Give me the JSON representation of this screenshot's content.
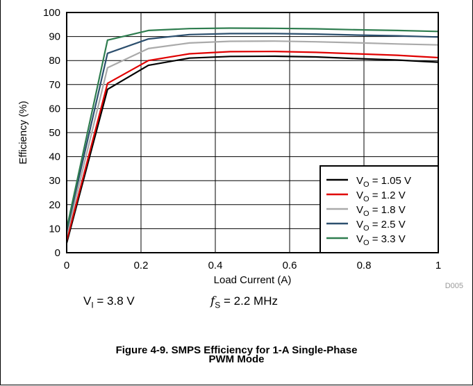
{
  "chart_data": {
    "type": "line",
    "xlabel": "Load Current (A)",
    "ylabel": "Efficiency (%)",
    "xlim": [
      0,
      1
    ],
    "ylim": [
      0,
      100
    ],
    "xticks": [
      0,
      0.2,
      0.4,
      0.6,
      0.8,
      1
    ],
    "xtick_labels": [
      "0",
      "0.2",
      "0.4",
      "0.6",
      "0.8",
      "1"
    ],
    "yticks": [
      0,
      10,
      20,
      30,
      40,
      50,
      60,
      70,
      80,
      90,
      100
    ],
    "grid": true,
    "legend_position": "bottom-right",
    "series": [
      {
        "name": "V_O = 1.05 V",
        "label_main": "V",
        "label_sub": "O",
        "label_rest": " = 1.05 V",
        "color": "#000000",
        "x": [
          0,
          0.11,
          0.22,
          0.33,
          0.44,
          0.56,
          0.67,
          0.78,
          0.89,
          1.0
        ],
        "y": [
          4,
          68,
          78,
          81,
          81.7,
          81.8,
          81.5,
          80.8,
          80.2,
          79.3
        ]
      },
      {
        "name": "V_O = 1.2 V",
        "label_main": "V",
        "label_sub": "O",
        "label_rest": " = 1.2 V",
        "color": "#e00000",
        "x": [
          0,
          0.11,
          0.22,
          0.33,
          0.44,
          0.56,
          0.67,
          0.78,
          0.89,
          1.0
        ],
        "y": [
          5,
          70.5,
          80,
          82.8,
          83.7,
          83.8,
          83.4,
          82.8,
          82.2,
          81.2
        ]
      },
      {
        "name": "V_O = 1.8 V",
        "label_main": "V",
        "label_sub": "O",
        "label_rest": " = 1.8 V",
        "color": "#aaaaaa",
        "x": [
          0,
          0.11,
          0.22,
          0.33,
          0.44,
          0.56,
          0.67,
          0.78,
          0.89,
          1.0
        ],
        "y": [
          7,
          77,
          85,
          87.3,
          88,
          88.1,
          87.8,
          87.4,
          86.9,
          86.5
        ]
      },
      {
        "name": "V_O = 2.5 V",
        "label_main": "V",
        "label_sub": "O",
        "label_rest": " = 2.5 V",
        "color": "#2c4f6e",
        "x": [
          0,
          0.11,
          0.22,
          0.33,
          0.44,
          0.56,
          0.67,
          0.78,
          0.89,
          1.0
        ],
        "y": [
          9,
          83,
          89,
          90.8,
          91.2,
          91.2,
          91,
          90.6,
          90.3,
          89.8
        ]
      },
      {
        "name": "V_O = 3.3 V",
        "label_main": "V",
        "label_sub": "O",
        "label_rest": " = 3.3 V",
        "color": "#2e7d4f",
        "x": [
          0,
          0.11,
          0.22,
          0.33,
          0.44,
          0.56,
          0.67,
          0.78,
          0.89,
          1.0
        ],
        "y": [
          10,
          88.5,
          92.5,
          93.3,
          93.5,
          93.4,
          93.2,
          92.8,
          92.5,
          92.1
        ]
      }
    ],
    "annotation": "D005"
  },
  "conditions": {
    "vi_main": "V",
    "vi_sub": "I",
    "vi_rest": " = 3.8 V",
    "fs_main": "f",
    "fs_sub": "S",
    "fs_rest": " = 2.2 MHz"
  },
  "caption": {
    "line1": "Figure 4-9. SMPS Efficiency for 1-A Single-Phase",
    "line2": "PWM Mode"
  }
}
